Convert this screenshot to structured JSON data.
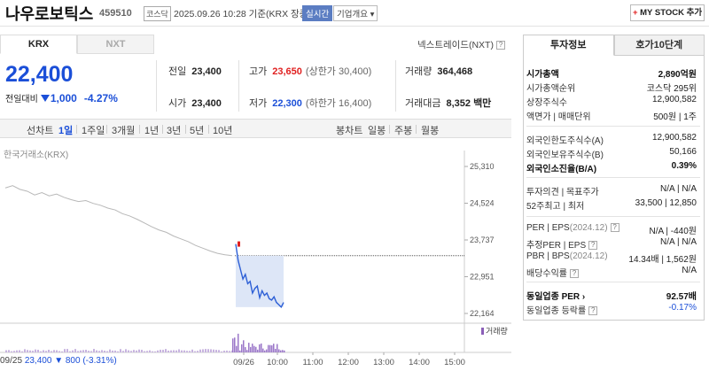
{
  "header": {
    "stock_name": "나우로보틱스",
    "stock_code": "459510",
    "market_badge": "코스닥",
    "date_info": "2025.09.26 10:28 기준(KRX 장중)",
    "realtime_badge": "실시간",
    "corp_overview": "기업개요",
    "add_mystock": "MY STOCK 추가",
    "add_mystock_plus": "+"
  },
  "exchange_tabs": [
    "KRX",
    "NXT"
  ],
  "nxt_link": "넥스트레이드(NXT)",
  "price": {
    "current": "22,400",
    "change_label": "전일대비",
    "change_value": "1,000",
    "change_pct": "-4.27%"
  },
  "quote": {
    "prev_label": "전일",
    "prev_value": "23,400",
    "open_label": "시가",
    "open_value": "23,400",
    "high_label": "고가",
    "high_value": "23,650",
    "upper_limit": "(상한가 30,400)",
    "low_label": "저가",
    "low_value": "22,300",
    "lower_limit": "(하한가 16,400)",
    "volume_label": "거래량",
    "volume_value": "364,468",
    "amount_label": "거래대금",
    "amount_value": "8,352 백만"
  },
  "period_tabs": {
    "line_chart": "선차트",
    "items": [
      "1일",
      "1주일",
      "3개월",
      "1년",
      "3년",
      "5년",
      "10년"
    ],
    "candle_chart": "봉차트",
    "candle_items": [
      "일봉",
      "주봉",
      "월봉"
    ]
  },
  "chart_data": {
    "type": "line",
    "source_label": "한국거래소(KRX)",
    "y_ticks": [
      "25,310",
      "24,524",
      "23,737",
      "22,951",
      "22,164"
    ],
    "ylim": [
      22164,
      25310
    ],
    "x_ticks": [
      "09/25",
      "09/26",
      "10:00",
      "11:00",
      "12:00",
      "13:00",
      "14:00",
      "15:00"
    ],
    "prev_close": 23400,
    "prev_day_series": [
      24850,
      24900,
      24820,
      24780,
      24700,
      24750,
      24680,
      24720,
      24650,
      24600,
      24560,
      24580,
      24520,
      24480,
      24420,
      24380,
      24300,
      24250,
      24180,
      24100,
      24020,
      23950,
      23900,
      23820,
      23760,
      23700,
      23620,
      23560,
      23500,
      23450,
      23420,
      23400
    ],
    "today_series": [
      23650,
      23300,
      23100,
      22900,
      23000,
      22800,
      22850,
      22600,
      22700,
      22750,
      22500,
      22650,
      22550,
      22600,
      22480,
      22450,
      22520,
      22400,
      22350,
      22300,
      22400
    ],
    "volume_legend": "거래량",
    "bottom_date": "09/25",
    "bottom_price": "23,400",
    "bottom_change": "▼ 800",
    "bottom_pct": "(-3.31%)"
  },
  "right_panel": {
    "tabs": [
      "투자정보",
      "호가10단계"
    ],
    "market_cap_label": "시가총액",
    "market_cap_value": "2,890억원",
    "cap_rank_label": "시가총액순위",
    "cap_rank_value": "코스닥 295위",
    "listed_shares_label": "상장주식수",
    "listed_shares_value": "12,900,582",
    "par_label": "액면가 | 매매단위",
    "par_value": "500원 | 1주",
    "foreign_limit_label": "외국인한도주식수(A)",
    "foreign_limit_value": "12,900,582",
    "foreign_hold_label": "외국인보유주식수(B)",
    "foreign_hold_value": "50,166",
    "foreign_ratio_label": "외국인소진율(B/A)",
    "foreign_ratio_value": "0.39%",
    "opinion_label": "투자의견 | 목표주가",
    "opinion_value": "N/A | N/A",
    "week52_label": "52주최고 | 최저",
    "week52_value": "33,500 | 12,850",
    "per_label": "PER | EPS",
    "per_year": "(2024.12)",
    "per_value": "N/A | -440원",
    "est_per_label": "추정PER | EPS",
    "est_per_value": "N/A | N/A",
    "pbr_label": "PBR | BPS",
    "pbr_year": "(2024.12)",
    "pbr_value": "14.34배 | 1,562원",
    "dividend_label": "배당수익률",
    "dividend_value": "N/A",
    "industry_per_label": "동일업종 PER",
    "industry_per_value": "92.57배",
    "industry_rate_label": "동일업종 등락률",
    "industry_rate_value": "-0.17%"
  }
}
